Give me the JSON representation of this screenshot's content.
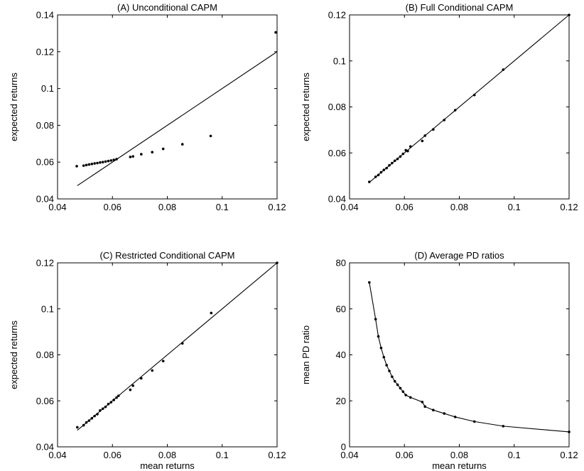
{
  "chart_data": [
    {
      "id": "A",
      "type": "scatter",
      "title": "(A) Unconditional CAPM",
      "xlabel": "",
      "ylabel": "expected returns",
      "xlim": [
        0.04,
        0.12
      ],
      "ylim": [
        0.04,
        0.14
      ],
      "xticks": [
        0.04,
        0.06,
        0.08,
        0.1,
        0.12
      ],
      "xtick_labels": [
        "0.04",
        "0.06",
        "0.08",
        "0.1",
        "0.12"
      ],
      "yticks": [
        0.04,
        0.06,
        0.08,
        0.1,
        0.12,
        0.14
      ],
      "ytick_labels": [
        "0.04",
        "0.06",
        "0.08",
        "0.1",
        "0.12",
        "0.14"
      ],
      "x": [
        0.047,
        0.0495,
        0.0505,
        0.0515,
        0.0525,
        0.0535,
        0.0545,
        0.0555,
        0.0565,
        0.0575,
        0.0585,
        0.0595,
        0.0605,
        0.0615,
        0.0665,
        0.0675,
        0.0705,
        0.0745,
        0.0785,
        0.0855,
        0.0958,
        0.1195
      ],
      "y": [
        0.0578,
        0.0581,
        0.0584,
        0.0587,
        0.059,
        0.0593,
        0.0595,
        0.0598,
        0.06,
        0.0603,
        0.0606,
        0.0609,
        0.0612,
        0.0616,
        0.0628,
        0.0631,
        0.0643,
        0.0654,
        0.0672,
        0.0697,
        0.0742,
        0.1305
      ],
      "line": {
        "x": [
          0.0472,
          0.12
        ],
        "y": [
          0.0472,
          0.12
        ]
      }
    },
    {
      "id": "B",
      "type": "scatter",
      "title": "(B) Full Conditional CAPM",
      "xlabel": "",
      "ylabel": "expected returns",
      "xlim": [
        0.04,
        0.12
      ],
      "ylim": [
        0.04,
        0.12
      ],
      "xticks": [
        0.04,
        0.06,
        0.08,
        0.1,
        0.12
      ],
      "xtick_labels": [
        "0.04",
        "0.06",
        "0.08",
        "0.1",
        "0.12"
      ],
      "yticks": [
        0.04,
        0.06,
        0.08,
        0.1,
        0.12
      ],
      "ytick_labels": [
        "0.04",
        "0.06",
        "0.08",
        "0.1",
        "0.12"
      ],
      "x": [
        0.0472,
        0.0495,
        0.0505,
        0.0515,
        0.0525,
        0.0535,
        0.0545,
        0.0555,
        0.0565,
        0.0575,
        0.0585,
        0.0595,
        0.0605,
        0.0612,
        0.0622,
        0.0665,
        0.0675,
        0.0705,
        0.0745,
        0.0785,
        0.0855,
        0.096,
        0.12
      ],
      "y": [
        0.0474,
        0.0496,
        0.0504,
        0.0516,
        0.0526,
        0.0534,
        0.0546,
        0.0556,
        0.0566,
        0.0574,
        0.0584,
        0.0596,
        0.0612,
        0.0608,
        0.0628,
        0.0652,
        0.0675,
        0.0702,
        0.0743,
        0.0786,
        0.0852,
        0.0962,
        0.12
      ],
      "line": {
        "x": [
          0.0472,
          0.12
        ],
        "y": [
          0.0472,
          0.12
        ]
      }
    },
    {
      "id": "C",
      "type": "scatter",
      "title": "(C) Restricted Conditional CAPM",
      "xlabel": "mean returns",
      "ylabel": "expected returns",
      "xlim": [
        0.04,
        0.12
      ],
      "ylim": [
        0.04,
        0.12
      ],
      "xticks": [
        0.04,
        0.06,
        0.08,
        0.1,
        0.12
      ],
      "xtick_labels": [
        "0.04",
        "0.06",
        "0.08",
        "0.1",
        "0.12"
      ],
      "yticks": [
        0.04,
        0.06,
        0.08,
        0.1,
        0.12
      ],
      "ytick_labels": [
        "0.04",
        "0.06",
        "0.08",
        "0.1",
        "0.12"
      ],
      "x": [
        0.0472,
        0.0495,
        0.0505,
        0.0515,
        0.0525,
        0.0535,
        0.0545,
        0.0555,
        0.0565,
        0.0575,
        0.0585,
        0.0595,
        0.0605,
        0.0615,
        0.0622,
        0.0665,
        0.0675,
        0.0705,
        0.0745,
        0.0785,
        0.0855,
        0.096,
        0.12
      ],
      "y": [
        0.0485,
        0.0494,
        0.0506,
        0.0514,
        0.0524,
        0.0534,
        0.0542,
        0.0558,
        0.0566,
        0.0574,
        0.0586,
        0.0594,
        0.0604,
        0.0614,
        0.0622,
        0.0648,
        0.0666,
        0.0698,
        0.0732,
        0.0773,
        0.085,
        0.0982,
        0.12
      ],
      "line": {
        "x": [
          0.0472,
          0.12
        ],
        "y": [
          0.0472,
          0.12
        ]
      }
    },
    {
      "id": "D",
      "type": "line",
      "title": "(D) Average PD ratios",
      "xlabel": "mean returns",
      "ylabel": "mean PD ratio",
      "xlim": [
        0.04,
        0.12
      ],
      "ylim": [
        0,
        80
      ],
      "xticks": [
        0.04,
        0.06,
        0.08,
        0.1,
        0.12
      ],
      "xtick_labels": [
        "0.04",
        "0.06",
        "0.08",
        "0.1",
        "0.12"
      ],
      "yticks": [
        0,
        20,
        40,
        60,
        80
      ],
      "ytick_labels": [
        "0",
        "20",
        "40",
        "60",
        "80"
      ],
      "x": [
        0.0472,
        0.0495,
        0.0505,
        0.0515,
        0.0525,
        0.0535,
        0.0545,
        0.0555,
        0.0565,
        0.0575,
        0.0585,
        0.0595,
        0.0605,
        0.0622,
        0.0665,
        0.0675,
        0.0705,
        0.0745,
        0.0785,
        0.0855,
        0.096,
        0.12
      ],
      "y": [
        71.5,
        55.5,
        48,
        43,
        39,
        35.5,
        33,
        30.5,
        28.5,
        27,
        25.5,
        24,
        22.5,
        21.5,
        19.5,
        17.5,
        16,
        14.5,
        13,
        11,
        9,
        6.5
      ],
      "markers": true
    }
  ]
}
